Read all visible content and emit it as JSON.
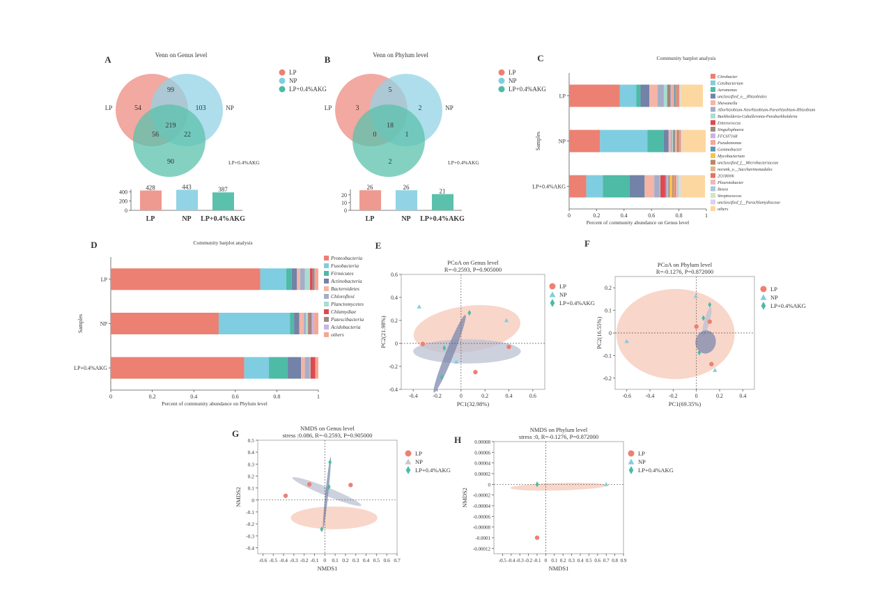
{
  "colors": {
    "LP": "#ec8073",
    "NP": "#7dcfe0",
    "AKG": "#4dbba6",
    "venn_LP": "#ee9a90",
    "venn_NP": "#93d3e6",
    "venn_AKG": "#5bc1ac",
    "ell_LP": "#f7c4b4",
    "ell_NP": "#bcc0d2",
    "ell_AKG": "#7d88ad"
  },
  "chart_data": [
    {
      "panel": "A",
      "type": "venn",
      "title": "Venn on Genus level",
      "sets": [
        "LP",
        "NP",
        "LP+0.4%AKG"
      ],
      "legend": [
        "LP",
        "NP",
        "LP+0.4%AKG"
      ],
      "regions": {
        "LP_only": 54,
        "NP_only": 103,
        "AKG_only": 90,
        "LP_NP": 99,
        "LP_AKG": 56,
        "NP_AKG": 22,
        "all": 219
      },
      "totals_bar": {
        "categories": [
          "LP",
          "NP",
          "LP+0.4%AKG"
        ],
        "values": [
          428,
          443,
          387
        ],
        "yticks": [
          0,
          200,
          400
        ],
        "ylim": [
          0,
          450
        ]
      }
    },
    {
      "panel": "B",
      "type": "venn",
      "title": "Venn on Phylum level",
      "sets": [
        "LP",
        "NP",
        "LP+0.4%AKG"
      ],
      "legend": [
        "LP",
        "NP",
        "LP+0.4%AKG"
      ],
      "regions": {
        "LP_only": 3,
        "NP_only": 2,
        "AKG_only": 2,
        "LP_NP": 5,
        "LP_AKG": 0,
        "NP_AKG": 1,
        "all": 18
      },
      "totals_bar": {
        "categories": [
          "LP",
          "NP",
          "LP+0.4%AKG"
        ],
        "values": [
          26,
          26,
          21
        ],
        "yticks": [
          0,
          10,
          20
        ],
        "ylim": [
          0,
          27
        ]
      }
    },
    {
      "panel": "C",
      "type": "bar",
      "orientation": "horizontal-stacked",
      "title": "Community barplot analysis",
      "xlabel": "Percent of community abundance on Genus level",
      "ylabel": "Samples",
      "xticks": [
        "0",
        "0.2",
        "0.4",
        "0.6",
        "0.8",
        "1"
      ],
      "xlim": [
        0,
        1
      ],
      "categories": [
        "LP",
        "NP",
        "LP+0.4%AKG"
      ],
      "series": [
        {
          "name": "Citrobacter",
          "color": "#ec8073",
          "values": [
            0.37,
            0.225,
            0.125
          ]
        },
        {
          "name": "Cetobacterium",
          "color": "#7fcde0",
          "values": [
            0.12,
            0.345,
            0.12
          ]
        },
        {
          "name": "Aeromonas",
          "color": "#4dbba6",
          "values": [
            0.03,
            0.12,
            0.195
          ]
        },
        {
          "name": "unclassified_o__Rhizobiales",
          "color": "#7282a8",
          "values": [
            0.065,
            0.035,
            0.11
          ]
        },
        {
          "name": "Shewanella",
          "color": "#f5b5a5",
          "values": [
            0.06,
            0.015,
            0.07
          ]
        },
        {
          "name": "Allorhizobium-Neorhizobium-Pararhizobium-Rhizobium",
          "color": "#a5adc8",
          "values": [
            0.045,
            0.01,
            0.04
          ]
        },
        {
          "name": "Burkholderia-Caballeronia-Paraburkholderia",
          "color": "#a9ddd0",
          "values": [
            0.025,
            0.008,
            0.005
          ]
        },
        {
          "name": "Enterococcus",
          "color": "#e0484f",
          "values": [
            0.005,
            0.004,
            0.035
          ]
        },
        {
          "name": "Singulisphaera",
          "color": "#9e8a7e",
          "values": [
            0.02,
            0.01,
            0.008
          ]
        },
        {
          "name": "FFCH7168",
          "color": "#c9b4e4",
          "values": [
            0.01,
            0.006,
            0.01
          ]
        },
        {
          "name": "Pseudomonas",
          "color": "#f5a793",
          "values": [
            0.015,
            0.008,
            0.006
          ]
        },
        {
          "name": "Gemmobacter",
          "color": "#5f94b6",
          "values": [
            0.01,
            0.006,
            0.008
          ]
        },
        {
          "name": "Mycobacterium",
          "color": "#f8c34f",
          "values": [
            0.002,
            0.002,
            0.02
          ]
        },
        {
          "name": "unclassified_f__Microbacteriaceae",
          "color": "#b8876a",
          "values": [
            0.008,
            0.008,
            0.01
          ]
        },
        {
          "name": "norank_o__Saccharimonadales",
          "color": "#dcb98b",
          "values": [
            0.004,
            0.006,
            0.006
          ]
        },
        {
          "name": "2O1R006",
          "color": "#e8705f",
          "values": [
            0.01,
            0.004,
            0.01
          ]
        },
        {
          "name": "Pleurotobacter",
          "color": "#f0b8b8",
          "values": [
            0.004,
            0.004,
            0.01
          ]
        },
        {
          "name": "Bosea",
          "color": "#aac6dd",
          "values": [
            0.004,
            0.003,
            0.008
          ]
        },
        {
          "name": "Streptococcus",
          "color": "#cde8c4",
          "values": [
            0.004,
            0.003,
            0.012
          ]
        },
        {
          "name": "unclassified_f__Parachlamydiaceae",
          "color": "#ddd0e8",
          "values": [
            0.004,
            0.003,
            0.007
          ]
        },
        {
          "name": "others",
          "color": "#fdd7a0",
          "values": [
            0.16,
            0.17,
            0.175
          ]
        }
      ]
    },
    {
      "panel": "D",
      "type": "bar",
      "orientation": "horizontal-stacked",
      "title": "Community barplot analysis",
      "xlabel": "Percent of community abundance on Phylum level",
      "ylabel": "Samples",
      "xticks": [
        "0",
        "0.2",
        "0.4",
        "0.6",
        "0.8",
        "1"
      ],
      "xlim": [
        0,
        1
      ],
      "categories": [
        "LP",
        "NP",
        "LP+0.4%AKG"
      ],
      "series": [
        {
          "name": "Proteobacteria",
          "color": "#ec8073",
          "values": [
            0.72,
            0.52,
            0.643
          ]
        },
        {
          "name": "Fusobacteria",
          "color": "#7fcde0",
          "values": [
            0.125,
            0.343,
            0.119
          ]
        },
        {
          "name": "Firmicutes",
          "color": "#4dbba6",
          "values": [
            0.027,
            0.02,
            0.09
          ]
        },
        {
          "name": "Actinobacteria",
          "color": "#7282a8",
          "values": [
            0.025,
            0.025,
            0.065
          ]
        },
        {
          "name": "Bacteroidetes",
          "color": "#f5b5a5",
          "values": [
            0.015,
            0.022,
            0.018
          ]
        },
        {
          "name": "Chloroflexi",
          "color": "#a5adc8",
          "values": [
            0.023,
            0.01,
            0.023
          ]
        },
        {
          "name": "Planctomycetes",
          "color": "#a9ddd0",
          "values": [
            0.025,
            0.01,
            0.004
          ]
        },
        {
          "name": "Chlamydiae",
          "color": "#e0484f",
          "values": [
            0.012,
            0.002,
            0.023
          ]
        },
        {
          "name": "Patescibacteria",
          "color": "#9e8a7e",
          "values": [
            0.01,
            0.016,
            0.0
          ]
        },
        {
          "name": "Acidobacteria",
          "color": "#c9b4e4",
          "values": [
            0.003,
            0.012,
            0.0
          ]
        },
        {
          "name": "others",
          "color": "#f5a793",
          "values": [
            0.015,
            0.02,
            0.015
          ]
        }
      ]
    },
    {
      "panel": "E",
      "type": "scatter",
      "title": "PCoA on Genus level",
      "subtitle": "R=-0.2593, P=0.905000",
      "xlabel": "PC1(32.98%)",
      "ylabel": "PC2(21.98%)",
      "xlim": [
        -0.5,
        0.7
      ],
      "ylim": [
        -0.4,
        0.6
      ],
      "xticks": [
        -0.4,
        -0.2,
        0,
        0.2,
        0.4,
        0.6
      ],
      "yticks": [
        -0.4,
        -0.2,
        0,
        0.2,
        0.4,
        0.6
      ],
      "legend": [
        "LP",
        "NP",
        "LP+0.4%AKG"
      ],
      "series": [
        {
          "name": "LP",
          "marker": "circle",
          "points": [
            [
              -0.32,
              -0.005
            ],
            [
              0.4,
              -0.03
            ],
            [
              0.12,
              -0.25
            ]
          ]
        },
        {
          "name": "NP",
          "marker": "triangle",
          "points": [
            [
              -0.35,
              0.32
            ],
            [
              0.38,
              0.2
            ],
            [
              -0.04,
              -0.16
            ]
          ]
        },
        {
          "name": "LP+0.4%AKG",
          "marker": "diamond",
          "points": [
            [
              0.07,
              0.265
            ],
            [
              -0.14,
              -0.04
            ],
            [
              -0.16,
              -0.295
            ]
          ]
        }
      ],
      "ellipses": [
        {
          "group": "LP",
          "cx": 0.05,
          "cy": 0.125,
          "rx": 0.45,
          "ry": 0.2,
          "angle": -8
        },
        {
          "group": "NP",
          "cx": 0.05,
          "cy": -0.07,
          "rx": 0.45,
          "ry": 0.105,
          "angle": 0
        },
        {
          "group": "LP+0.4%AKG",
          "cx": -0.095,
          "cy": -0.09,
          "rx": 0.35,
          "ry": 0.035,
          "angle": -68
        }
      ]
    },
    {
      "panel": "F",
      "type": "scatter",
      "title": "PCoA on Phylum level",
      "subtitle": "R=-0.1276, P=0.872000",
      "xlabel": "PC1(69.35%)",
      "ylabel": "PC2(16.55%)",
      "xlim": [
        -0.7,
        0.5
      ],
      "ylim": [
        -0.25,
        0.25
      ],
      "xticks": [
        -0.6,
        -0.4,
        -0.2,
        0,
        0.2,
        0.4
      ],
      "yticks": [
        -0.2,
        -0.1,
        0,
        0.1,
        0.2
      ],
      "legend": [
        "LP",
        "NP",
        "LP+0.4%AKG"
      ],
      "series": [
        {
          "name": "LP",
          "marker": "circle",
          "points": [
            [
              0.0,
              0.028
            ],
            [
              0.115,
              0.05
            ],
            [
              0.13,
              -0.138
            ]
          ]
        },
        {
          "name": "NP",
          "marker": "triangle",
          "points": [
            [
              -0.005,
              0.163
            ],
            [
              -0.6,
              -0.037
            ],
            [
              0.16,
              -0.165
            ]
          ]
        },
        {
          "name": "LP+0.4%AKG",
          "marker": "diamond",
          "points": [
            [
              0.115,
              0.125
            ],
            [
              0.06,
              0.066
            ],
            [
              0.025,
              -0.087
            ]
          ]
        }
      ],
      "ellipses": [
        {
          "group": "LP",
          "cx": -0.18,
          "cy": -0.005,
          "rx": 0.51,
          "ry": 0.2,
          "angle": 0
        },
        {
          "group": "NP",
          "cx": 0.09,
          "cy": 0.05,
          "rx": 0.13,
          "ry": 0.012,
          "angle": -75
        },
        {
          "group": "LP+0.4%AKG",
          "cx": 0.08,
          "cy": -0.04,
          "rx": 0.1,
          "ry": 0.045,
          "angle": -80
        }
      ]
    },
    {
      "panel": "G",
      "type": "scatter",
      "title": "NMDS on Genus level",
      "subtitle": "stress :0.086, R=-0.2593, P=0.905000",
      "xlabel": "NMDS1",
      "ylabel": "NMDS2",
      "xlim": [
        -0.65,
        0.7
      ],
      "ylim": [
        -0.45,
        0.5
      ],
      "xticks": [
        -0.6,
        -0.5,
        -0.4,
        -0.3,
        -0.2,
        -0.1,
        0,
        0.1,
        0.2,
        0.3,
        0.4,
        0.5,
        0.6,
        0.7
      ],
      "yticks": [
        -0.4,
        -0.3,
        -0.2,
        -0.1,
        0,
        0.1,
        0.2,
        0.3,
        0.4,
        0.5
      ],
      "legend": [
        "LP",
        "NP",
        "LP+0.4%AKG"
      ],
      "series": [
        {
          "name": "LP",
          "marker": "circle",
          "points": [
            [
              -0.38,
              0.035
            ],
            [
              -0.15,
              0.13
            ],
            [
              0.25,
              0.125
            ]
          ]
        },
        {
          "name": "NP",
          "marker": "triangle",
          "points": []
        },
        {
          "name": "LP+0.4%AKG",
          "marker": "diamond",
          "points": [
            [
              0.05,
              0.315
            ],
            [
              0.04,
              0.11
            ],
            [
              -0.03,
              -0.245
            ]
          ]
        }
      ],
      "ellipses": [
        {
          "group": "LP",
          "cx": 0.09,
          "cy": -0.15,
          "rx": 0.42,
          "ry": 0.095,
          "angle": 0
        },
        {
          "group": "NP",
          "cx": 0.02,
          "cy": 0.07,
          "rx": 0.36,
          "ry": 0.035,
          "angle": 22
        },
        {
          "group": "LP+0.4%AKG",
          "cx": 0.02,
          "cy": 0.06,
          "rx": 0.35,
          "ry": 0.012,
          "angle": -84
        }
      ]
    },
    {
      "panel": "H",
      "type": "scatter",
      "title": "NMDS on Phylum level",
      "subtitle": "stress :0, R=-0.1276, P=0.872000",
      "xlabel": "NMDS1",
      "ylabel": "NMDS2",
      "xlim": [
        -0.6,
        0.9
      ],
      "ylim": [
        -0.00013,
        8e-05
      ],
      "xticks": [
        -0.5,
        -0.4,
        -0.3,
        -0.2,
        -0.1,
        0,
        0.1,
        0.2,
        0.3,
        0.4,
        0.5,
        0.6,
        0.7,
        0.8,
        0.9
      ],
      "yticks": [
        -0.00012,
        -0.0001,
        -8e-05,
        -6e-05,
        -4e-05,
        -2e-05,
        0,
        2e-05,
        4e-05,
        6e-05,
        8e-05
      ],
      "ytick_labels": [
        "-0.00012",
        "-0.0001",
        "-0.00008",
        "-0.00006",
        "-0.00004",
        "-0.00002",
        "0",
        "0.00002",
        "0.00004",
        "0.00006",
        "0.00008"
      ],
      "legend": [
        "LP",
        "NP",
        "LP+0.4%AKG"
      ],
      "series": [
        {
          "name": "LP",
          "marker": "circle",
          "points": [
            [
              -0.1,
              -0.0001
            ]
          ]
        },
        {
          "name": "NP",
          "marker": "triangle",
          "points": [
            [
              0.7,
              0.0
            ]
          ]
        },
        {
          "name": "LP+0.4%AKG",
          "marker": "diamond",
          "points": [
            [
              -0.1,
              0.0
            ]
          ]
        }
      ],
      "ellipses": [
        {
          "group": "LP",
          "cx": 0.15,
          "cy": -4.5e-06,
          "rx": 0.56,
          "ry": 7e-06,
          "angle": -1.5
        }
      ]
    }
  ]
}
